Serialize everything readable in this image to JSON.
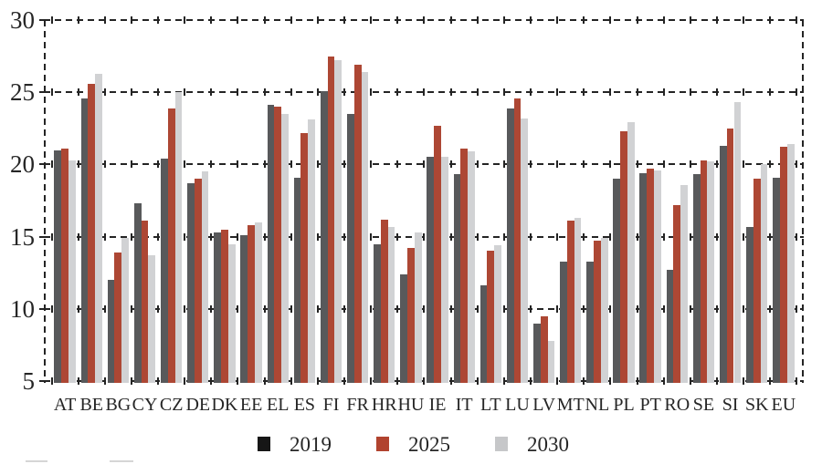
{
  "chart_data": {
    "type": "bar",
    "title": "",
    "xlabel": "",
    "ylabel": "",
    "categories": [
      "AT",
      "BE",
      "BG",
      "CY",
      "CZ",
      "DE",
      "DK",
      "EE",
      "EL",
      "ES",
      "FI",
      "FR",
      "HR",
      "HU",
      "IE",
      "IT",
      "LT",
      "LU",
      "LV",
      "MT",
      "NL",
      "PL",
      "PT",
      "RO",
      "SE",
      "SI",
      "SK",
      "EU"
    ],
    "series": [
      {
        "name": "2019",
        "legend_swatch_color": "#161616",
        "bar_color": "#58595b",
        "values": [
          21.0,
          24.6,
          12.0,
          17.3,
          20.4,
          18.7,
          15.3,
          15.1,
          24.1,
          19.1,
          25.1,
          23.5,
          14.5,
          12.4,
          20.5,
          19.3,
          11.6,
          23.9,
          9.0,
          13.3,
          13.3,
          19.0,
          19.4,
          12.7,
          19.3,
          21.3,
          15.7,
          19.1
        ]
      },
      {
        "name": "2025",
        "legend_swatch_color": "#b1432f",
        "bar_color": "#ad4734",
        "values": [
          21.1,
          25.6,
          13.9,
          16.1,
          23.9,
          19.0,
          15.5,
          15.8,
          24.0,
          22.2,
          27.5,
          26.9,
          16.2,
          14.2,
          22.7,
          21.1,
          14.0,
          24.6,
          9.5,
          16.1,
          14.7,
          22.3,
          19.7,
          17.2,
          20.3,
          22.5,
          19.0,
          21.2
        ]
      },
      {
        "name": "2030",
        "legend_swatch_color": "#c6c7c9",
        "bar_color": "#d1d2d4",
        "values": [
          20.3,
          26.3,
          14.9,
          13.7,
          25.0,
          19.5,
          14.5,
          16.0,
          23.5,
          23.1,
          27.2,
          26.4,
          15.7,
          15.3,
          20.5,
          20.9,
          14.4,
          23.2,
          7.8,
          16.3,
          14.9,
          22.9,
          19.6,
          18.6,
          20.2,
          24.3,
          20.0,
          21.4
        ]
      }
    ],
    "ylim": [
      5,
      30
    ],
    "yticks": [
      5,
      10,
      15,
      20,
      25,
      30
    ],
    "grid": "dashed-horizontal",
    "axis_style": "dashed-vertical-left-and-right",
    "legend_position": "bottom",
    "gridline_color": "#242424",
    "text_color": "#262626"
  }
}
